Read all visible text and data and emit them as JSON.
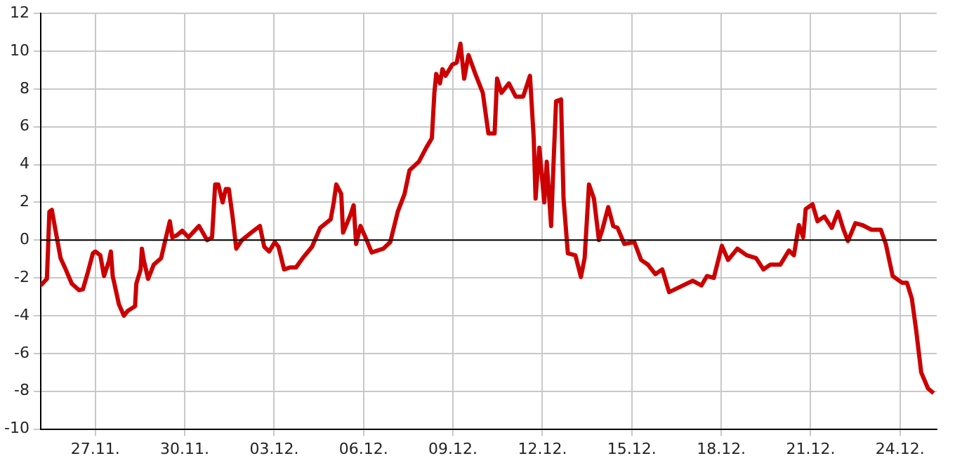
{
  "chart_data": {
    "type": "line",
    "xlim": [
      "--11-25T04:00",
      "--12-25T05:30"
    ],
    "xticks": [
      {
        "value": "--11-27",
        "label": "27.11."
      },
      {
        "value": "--11-30",
        "label": "30.11."
      },
      {
        "value": "--12-03",
        "label": "03.12."
      },
      {
        "value": "--12-06",
        "label": "06.12."
      },
      {
        "value": "--12-09",
        "label": "09.12."
      },
      {
        "value": "--12-12",
        "label": "12.12."
      },
      {
        "value": "--12-15",
        "label": "15.12."
      },
      {
        "value": "--12-18",
        "label": "18.12."
      },
      {
        "value": "--12-21",
        "label": "21.12."
      },
      {
        "value": "--12-24",
        "label": "24.12."
      }
    ],
    "ylim": [
      -10,
      12
    ],
    "yticks": [
      -10,
      -8,
      -6,
      -4,
      -2,
      0,
      2,
      4,
      6,
      8,
      10,
      12
    ],
    "grid": true,
    "legend": false,
    "marker": "none",
    "line_style": "solid",
    "ref_lines": [
      {
        "axis": "y",
        "value": 0,
        "color": "#000000"
      }
    ],
    "series": [
      {
        "color": "#cc0000",
        "x": [
          "--11-25T04:00",
          "--11-25T09:00",
          "--11-25T10:00",
          "--11-25T11:00",
          "--11-25T13:00",
          "--11-25T16:00",
          "--11-25T20:00",
          "--11-25T23:30",
          "--11-26T05:00",
          "--11-26T11:00",
          "--11-26T14:00",
          "--11-26T18:00",
          "--11-26T22:00",
          "--11-27T00:00",
          "--11-27T04:00",
          "--11-27T07:00",
          "--11-27T11:00",
          "--11-27T12:30",
          "--11-27T14:00",
          "--11-27T19:00",
          "--11-27T23:00",
          "--11-28T02:00",
          "--11-28T08:00",
          "--11-28T09:00",
          "--11-28T12:30",
          "--11-28T13:30",
          "--11-28T15:00",
          "--11-28T18:30",
          "--11-28T23:00",
          "--11-29T05:00",
          "--11-29T08:00",
          "--11-29T12:00",
          "--11-29T14:00",
          "--11-29T17:30",
          "--11-29T22:00",
          "--11-30T03:00",
          "--11-30T11:30",
          "--11-30T18:00",
          "--11-30T22:00",
          "--12-01T00:30",
          "--12-01T03:00",
          "--12-01T06:30",
          "--12-01T09:00",
          "--12-01T11:30",
          "--12-01T14:30",
          "--12-01T17:30",
          "--12-01T22:00",
          "--12-02T05:30",
          "--12-02T12:30",
          "--12-02T16:00",
          "--12-02T20:00",
          "--12-03T00:30",
          "--12-03T03:30",
          "--12-03T08:00",
          "--12-03T12:30",
          "--12-03T17:30",
          "--12-03T23:00",
          "--12-04T06:30",
          "--12-04T13:00",
          "--12-04T21:30",
          "--12-05T00:00",
          "--12-05T02:00",
          "--12-05T06:00",
          "--12-05T07:30",
          "--12-05T13:30",
          "--12-05T16:00",
          "--12-05T18:00",
          "--12-05T21:30",
          "--12-06T02:30",
          "--12-06T06:30",
          "--12-06T16:00",
          "--12-06T21:30",
          "--12-07T03:30",
          "--12-07T09:00",
          "--12-07T13:00",
          "--12-07T20:30",
          "--12-08T02:30",
          "--12-08T07:00",
          "--12-08T09:00",
          "--12-08T10:30",
          "--12-08T13:30",
          "--12-08T15:30",
          "--12-08T18:00",
          "--12-08T23:30",
          "--12-09T03:00",
          "--12-09T06:00",
          "--12-09T09:00",
          "--12-09T12:30",
          "--12-09T18:00",
          "--12-10T00:00",
          "--12-10T04:30",
          "--12-10T09:30",
          "--12-10T11:30",
          "--12-10T15:00",
          "--12-10T21:00",
          "--12-11T02:30",
          "--12-11T08:30",
          "--12-11T14:00",
          "--12-11T17:00",
          "--12-11T18:30",
          "--12-11T21:30",
          "--12-12T01:30",
          "--12-12T03:30",
          "--12-12T07:00",
          "--12-12T09:00",
          "--12-12T11:00",
          "--12-12T15:00",
          "--12-12T17:00",
          "--12-12T20:30",
          "--12-13T02:30",
          "--12-13T07:00",
          "--12-13T10:00",
          "--12-13T13:30",
          "--12-13T17:30",
          "--12-13T21:30",
          "--12-14T00:00",
          "--12-14T05:00",
          "--12-14T09:00",
          "--12-14T12:30",
          "--12-14T18:00",
          "--12-15T02:00",
          "--12-15T07:30",
          "--12-15T13:00",
          "--12-15T19:00",
          "--12-16T00:30",
          "--12-16T06:00",
          "--12-16T14:00",
          "--12-17T01:00",
          "--12-17T08:00",
          "--12-17T12:30",
          "--12-17T18:00",
          "--12-18T00:30",
          "--12-18T05:30",
          "--12-18T13:00",
          "--12-18T20:30",
          "--12-19T04:00",
          "--12-19T10:00",
          "--12-19T15:30",
          "--12-19T23:30",
          "--12-20T06:30",
          "--12-20T10:30",
          "--12-20T14:30",
          "--12-20T18:00",
          "--12-20T20:00",
          "--12-21T01:30",
          "--12-21T05:30",
          "--12-21T11:00",
          "--12-21T17:00",
          "--12-21T22:00",
          "--12-22T02:30",
          "--12-22T06:00",
          "--12-22T12:00",
          "--12-22T17:30",
          "--12-23T01:00",
          "--12-23T08:30",
          "--12-23T12:30",
          "--12-23T18:00",
          "--12-24T01:30",
          "--12-24T05:30",
          "--12-24T09:30",
          "--12-24T13:00",
          "--12-24T17:00",
          "--12-24T22:30",
          "--12-25T03:00"
        ],
        "values": [
          -2.4,
          -2.05,
          -0.35,
          1.5,
          1.6,
          0.5,
          -0.95,
          -1.45,
          -2.3,
          -2.65,
          -2.6,
          -1.7,
          -0.7,
          -0.6,
          -0.8,
          -1.9,
          -1.1,
          -0.6,
          -1.9,
          -3.4,
          -4.0,
          -3.75,
          -3.5,
          -2.3,
          -1.55,
          -0.45,
          -1.05,
          -2.05,
          -1.3,
          -0.95,
          -0.1,
          1.0,
          0.15,
          0.25,
          0.5,
          0.15,
          0.75,
          0.0,
          0.15,
          2.95,
          2.95,
          2.0,
          2.7,
          2.7,
          1.25,
          -0.45,
          0.0,
          0.4,
          0.75,
          -0.35,
          -0.6,
          -0.1,
          -0.35,
          -1.55,
          -1.45,
          -1.45,
          -0.95,
          -0.35,
          0.65,
          1.1,
          2.0,
          2.95,
          2.45,
          0.4,
          1.35,
          1.85,
          -0.2,
          0.75,
          0.0,
          -0.65,
          -0.45,
          -0.1,
          1.5,
          2.45,
          3.7,
          4.15,
          4.9,
          5.4,
          7.8,
          8.8,
          8.3,
          9.05,
          8.7,
          9.3,
          9.4,
          10.4,
          8.55,
          9.8,
          8.8,
          7.8,
          5.65,
          5.65,
          8.55,
          7.8,
          8.3,
          7.6,
          7.6,
          8.7,
          5.4,
          2.2,
          4.9,
          2.0,
          4.15,
          0.75,
          4.15,
          7.35,
          7.45,
          2.2,
          -0.7,
          -0.8,
          -1.95,
          -0.95,
          2.95,
          2.2,
          0.0,
          0.5,
          1.75,
          0.75,
          0.65,
          -0.2,
          -0.1,
          -1.05,
          -1.3,
          -1.8,
          -1.55,
          -2.75,
          -2.5,
          -2.15,
          -2.4,
          -1.9,
          -2.0,
          -0.3,
          -1.05,
          -0.45,
          -0.8,
          -0.95,
          -1.55,
          -1.3,
          -1.3,
          -0.55,
          -0.8,
          0.8,
          0.15,
          1.65,
          1.9,
          1.0,
          1.25,
          0.65,
          1.5,
          0.55,
          -0.05,
          0.9,
          0.8,
          0.55,
          0.55,
          -0.2,
          -1.9,
          -2.25,
          -2.25,
          -3.1,
          -4.8,
          -7.0,
          -7.85,
          -8.1
        ]
      }
    ]
  }
}
